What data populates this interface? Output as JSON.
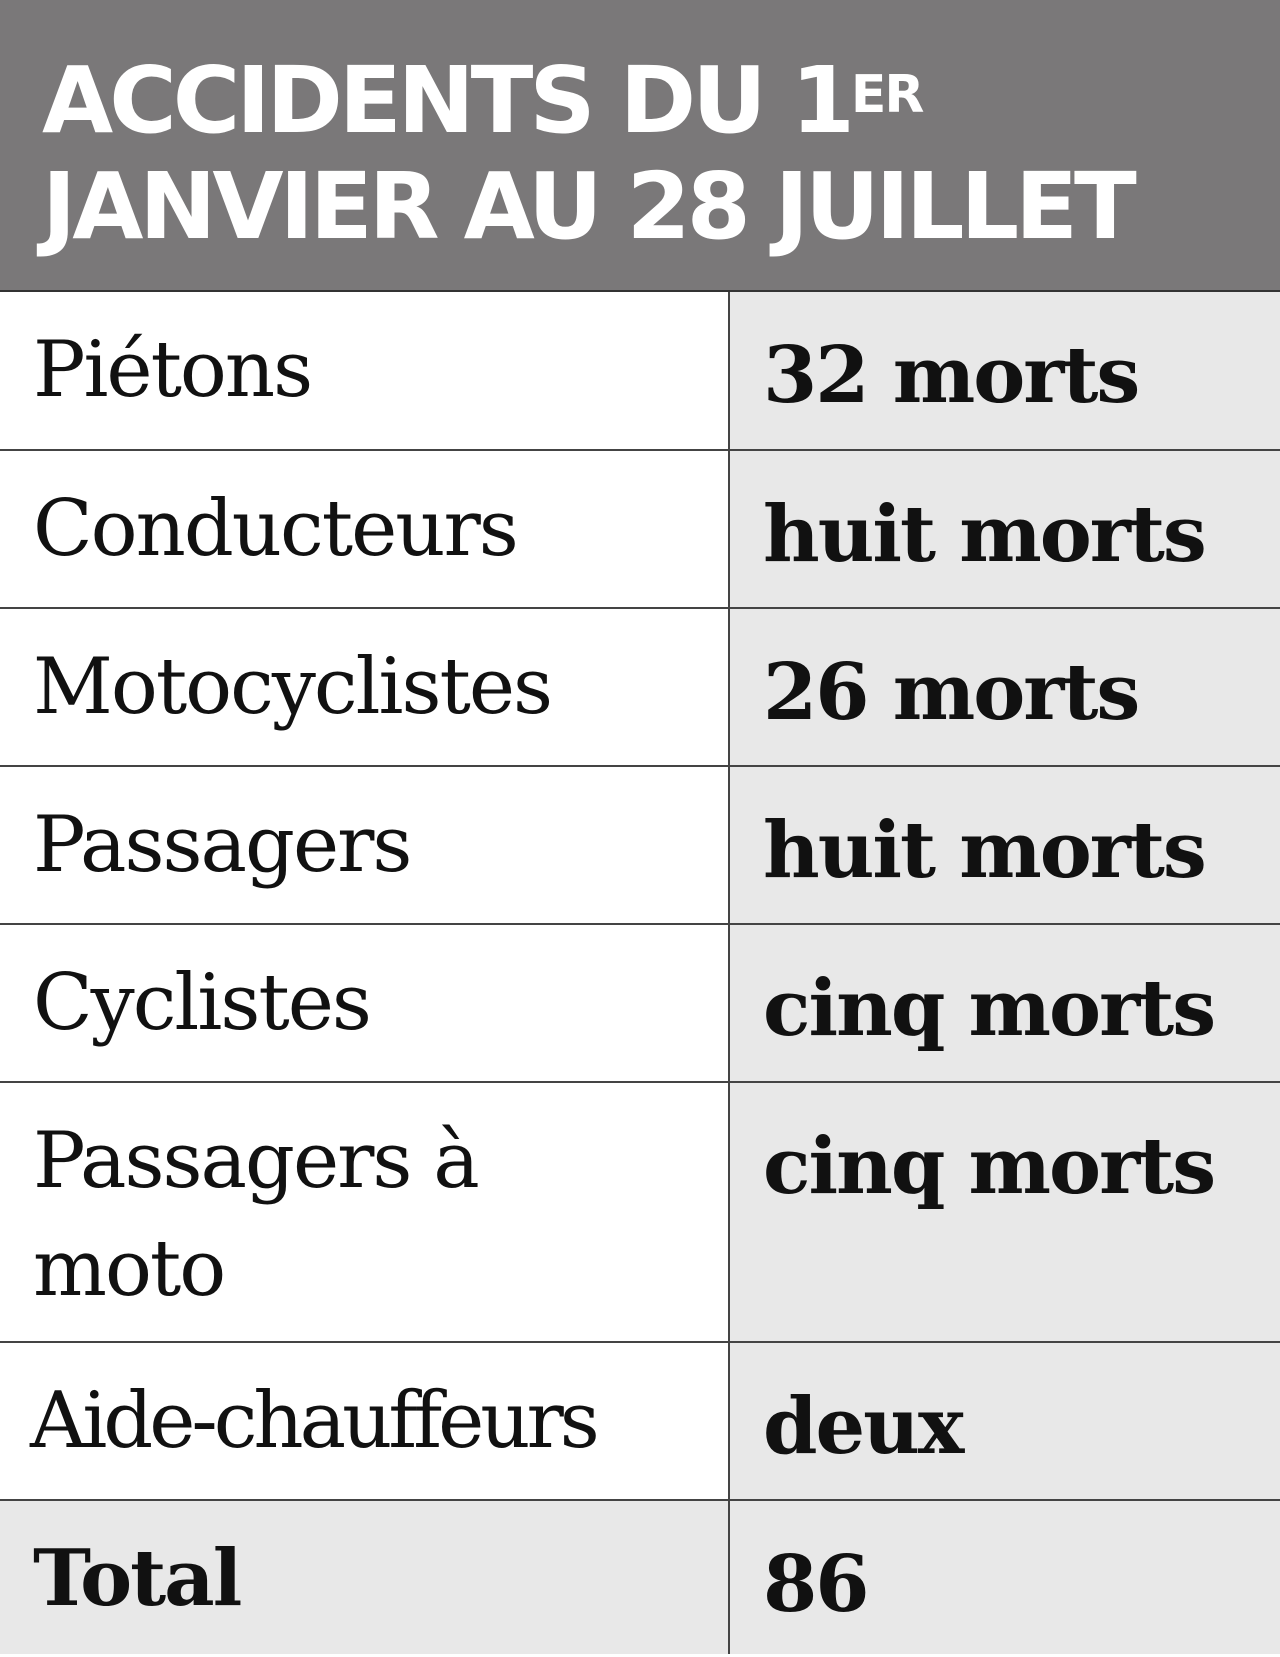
{
  "header": {
    "title_line1": "ACCIDENTS DU 1",
    "title_sup": "ER",
    "title_line2": "JANVIER AU 28 JUILLET"
  },
  "rows": [
    {
      "label": "Piétons",
      "value": "32 morts"
    },
    {
      "label": "Conducteurs",
      "value": "huit morts"
    },
    {
      "label": "Motocyclistes",
      "value": "26 morts"
    },
    {
      "label": "Passagers",
      "value": "huit morts"
    },
    {
      "label": "Cyclistes",
      "value": "cinq morts"
    },
    {
      "label": "Passagers à moto",
      "value": "cinq morts"
    },
    {
      "label": "Aide-chauffeurs",
      "value": "deux"
    }
  ],
  "total": {
    "label": "Total",
    "value": "86"
  },
  "colors": {
    "header_bg": "#7a7879",
    "value_bg": "#e8e8e8"
  }
}
